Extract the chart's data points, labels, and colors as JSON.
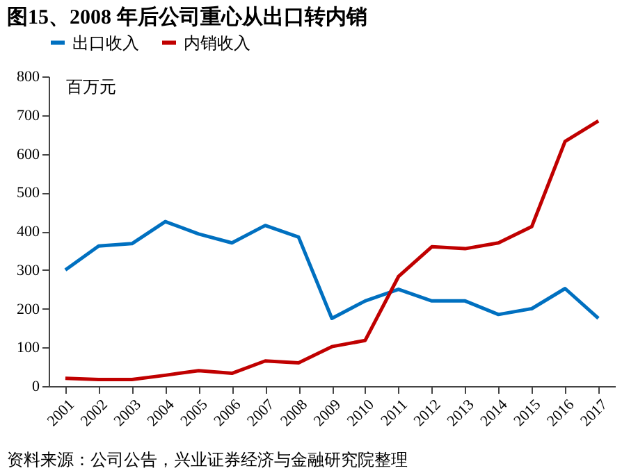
{
  "chart_data": {
    "type": "line",
    "title": "图15、2008 年后公司重心从出口转内销",
    "ylabel": "百万元",
    "categories": [
      "2001",
      "2002",
      "2003",
      "2004",
      "2005",
      "2006",
      "2007",
      "2008",
      "2009",
      "2010",
      "2011",
      "2012",
      "2013",
      "2014",
      "2015",
      "2016",
      "2017"
    ],
    "series": [
      {
        "name": "出口收入",
        "color": "#0070c0",
        "values": [
          300,
          362,
          368,
          425,
          393,
          370,
          415,
          385,
          175,
          220,
          250,
          220,
          220,
          185,
          200,
          252,
          175
        ]
      },
      {
        "name": "内销收入",
        "color": "#c00000",
        "values": [
          20,
          17,
          17,
          28,
          40,
          33,
          65,
          60,
          102,
          118,
          283,
          360,
          355,
          370,
          412,
          632,
          685
        ]
      }
    ],
    "ylim": [
      0,
      800
    ],
    "yticks": [
      0,
      100,
      200,
      300,
      400,
      500,
      600,
      700,
      800
    ],
    "grid": false,
    "legend": "top",
    "marker": "none",
    "line_style": "solid",
    "annotations": [
      "资料来源：公司公告，兴业证券经济与金融研究院整理"
    ]
  }
}
